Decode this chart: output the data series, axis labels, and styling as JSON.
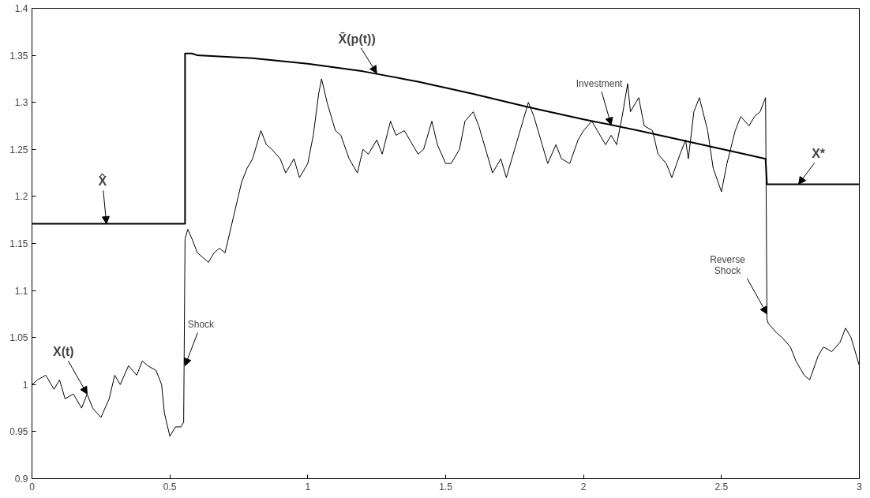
{
  "chart_data": {
    "type": "line",
    "series": [
      {
        "color": "#000000",
        "x": [
          0,
          0.02,
          0.05,
          0.08,
          0.1,
          0.12,
          0.15,
          0.18,
          0.2,
          0.22,
          0.25,
          0.28,
          0.3,
          0.32,
          0.35,
          0.38,
          0.4,
          0.42,
          0.45,
          0.47,
          0.48,
          0.5,
          0.52,
          0.54,
          0.55,
          0.555,
          0.565,
          0.58,
          0.6,
          0.62,
          0.64,
          0.66,
          0.68,
          0.7,
          0.72,
          0.74,
          0.76,
          0.78,
          0.8,
          0.82,
          0.83,
          0.85,
          0.87,
          0.9,
          0.92,
          0.95,
          0.97,
          1.0,
          1.02,
          1.04,
          1.05,
          1.07,
          1.1,
          1.12,
          1.15,
          1.18,
          1.2,
          1.22,
          1.25,
          1.27,
          1.3,
          1.32,
          1.35,
          1.37,
          1.4,
          1.42,
          1.45,
          1.47,
          1.5,
          1.52,
          1.55,
          1.57,
          1.6,
          1.62,
          1.65,
          1.67,
          1.7,
          1.72,
          1.75,
          1.78,
          1.8,
          1.82,
          1.85,
          1.87,
          1.9,
          1.92,
          1.95,
          1.98,
          2.0,
          2.03,
          2.05,
          2.08,
          2.1,
          2.12,
          2.14,
          2.16,
          2.17,
          2.2,
          2.22,
          2.25,
          2.27,
          2.3,
          2.32,
          2.35,
          2.37,
          2.38,
          2.4,
          2.42,
          2.45,
          2.47,
          2.5,
          2.52,
          2.55,
          2.57,
          2.6,
          2.62,
          2.64,
          2.66,
          2.665,
          2.67,
          2.7,
          2.72,
          2.75,
          2.77,
          2.8,
          2.82,
          2.85,
          2.87,
          2.9,
          2.93,
          2.95,
          2.97,
          3.0
        ],
        "values": [
          1.0,
          1.005,
          1.01,
          0.995,
          1.005,
          0.985,
          0.99,
          0.975,
          0.99,
          0.975,
          0.965,
          0.985,
          1.01,
          1.0,
          1.02,
          1.01,
          1.025,
          1.02,
          1.015,
          1.0,
          0.97,
          0.945,
          0.955,
          0.955,
          0.96,
          1.155,
          1.165,
          1.155,
          1.14,
          1.135,
          1.13,
          1.14,
          1.145,
          1.14,
          1.165,
          1.19,
          1.215,
          1.23,
          1.24,
          1.26,
          1.27,
          1.255,
          1.25,
          1.24,
          1.225,
          1.24,
          1.22,
          1.235,
          1.265,
          1.31,
          1.325,
          1.3,
          1.27,
          1.265,
          1.24,
          1.225,
          1.25,
          1.245,
          1.26,
          1.245,
          1.28,
          1.265,
          1.27,
          1.26,
          1.245,
          1.25,
          1.28,
          1.255,
          1.235,
          1.235,
          1.25,
          1.28,
          1.29,
          1.275,
          1.245,
          1.225,
          1.24,
          1.22,
          1.25,
          1.28,
          1.3,
          1.285,
          1.255,
          1.235,
          1.255,
          1.24,
          1.235,
          1.26,
          1.27,
          1.28,
          1.27,
          1.255,
          1.265,
          1.255,
          1.285,
          1.32,
          1.29,
          1.305,
          1.275,
          1.27,
          1.245,
          1.235,
          1.22,
          1.245,
          1.26,
          1.24,
          1.29,
          1.305,
          1.27,
          1.23,
          1.205,
          1.235,
          1.27,
          1.285,
          1.275,
          1.285,
          1.29,
          1.305,
          1.07,
          1.065,
          1.055,
          1.05,
          1.04,
          1.025,
          1.01,
          1.005,
          1.03,
          1.04,
          1.035,
          1.045,
          1.06,
          1.05,
          1.02
        ]
      },
      {
        "color": "#000000",
        "x": [
          0,
          0.555,
          0.555,
          0.58,
          0.6,
          0.8,
          1.0,
          1.2,
          1.4,
          1.6,
          1.8,
          2.0,
          2.2,
          2.4,
          2.6,
          2.66,
          2.665,
          3.0
        ],
        "values": [
          1.171,
          1.171,
          1.352,
          1.352,
          1.35,
          1.347,
          1.341,
          1.333,
          1.322,
          1.309,
          1.295,
          1.282,
          1.27,
          1.257,
          1.244,
          1.24,
          1.213,
          1.213
        ]
      }
    ],
    "annotations": [
      {
        "text": "X̂",
        "x": 0.27,
        "y": 1.171
      },
      {
        "text": "X(t)",
        "x": 0.2,
        "y": 0.99
      },
      {
        "text": "X̄(p(t))",
        "x": 1.25,
        "y": 1.331
      },
      {
        "text": "Shock",
        "x": 0.555,
        "y": 1.02
      },
      {
        "text": "Investment",
        "x": 2.1,
        "y": 1.276
      },
      {
        "text": "Reverse Shock",
        "x": 2.665,
        "y": 1.075
      },
      {
        "text": "X*",
        "x": 2.78,
        "y": 1.213
      }
    ],
    "xlim": [
      0,
      3
    ],
    "ylim": [
      0.9,
      1.4
    ],
    "xticks": [
      0,
      0.5,
      1,
      1.5,
      2,
      2.5,
      3
    ],
    "yticks": [
      0.9,
      0.95,
      1,
      1.05,
      1.1,
      1.15,
      1.2,
      1.25,
      1.3,
      1.35,
      1.4
    ],
    "grid": false,
    "marker": "none",
    "line_style": "solid"
  }
}
